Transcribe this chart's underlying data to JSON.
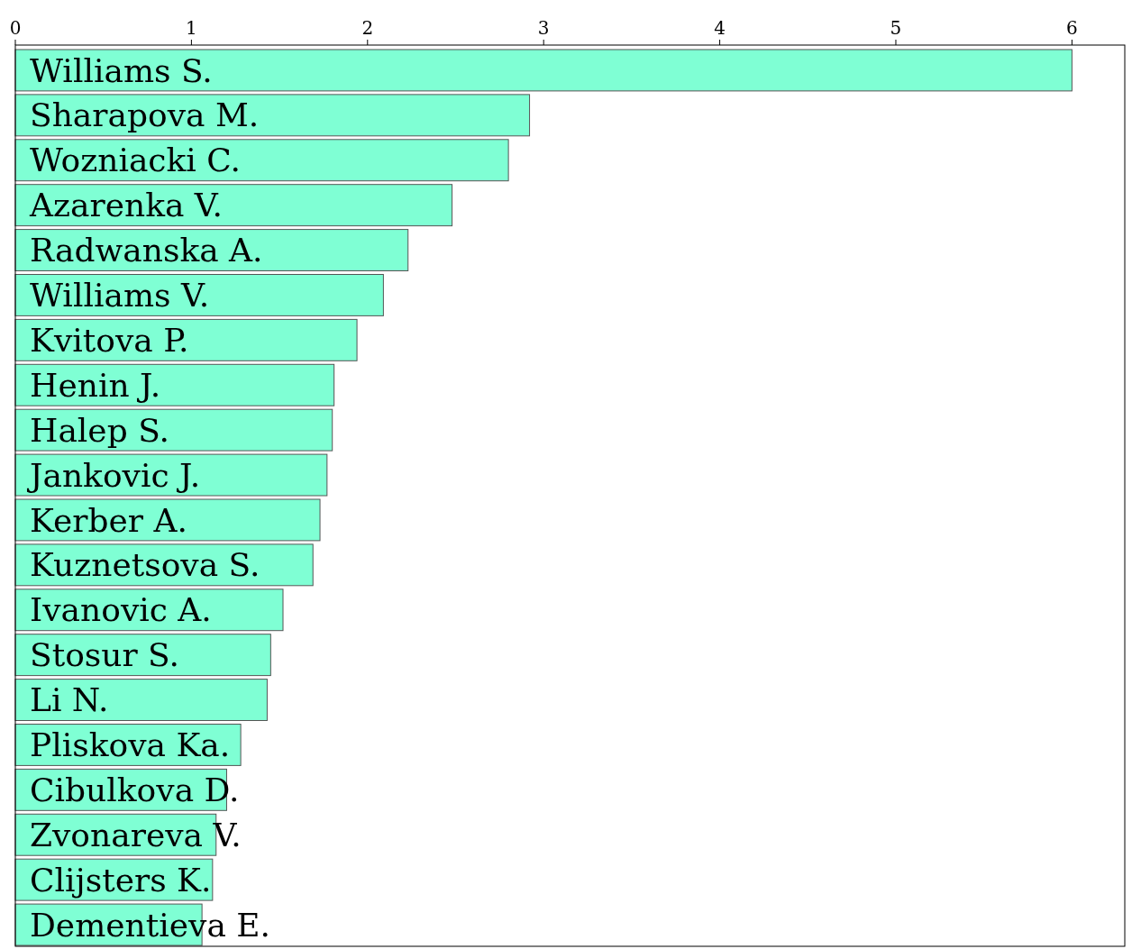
{
  "chart_data": {
    "type": "bar",
    "orientation": "horizontal",
    "categories": [
      "Williams S.",
      "Sharapova M.",
      "Wozniacki C.",
      "Azarenka V.",
      "Radwanska A.",
      "Williams V.",
      "Kvitova P.",
      "Henin J.",
      "Halep S.",
      "Jankovic J.",
      "Kerber A.",
      "Kuznetsova S.",
      "Ivanovic A.",
      "Stosur S.",
      "Li N.",
      "Pliskova Ka.",
      "Cibulkova D.",
      "Zvonareva V.",
      "Clijsters K.",
      "Dementieva E."
    ],
    "values": [
      6.0,
      2.92,
      2.8,
      2.48,
      2.23,
      2.09,
      1.94,
      1.81,
      1.8,
      1.77,
      1.73,
      1.69,
      1.52,
      1.45,
      1.43,
      1.28,
      1.2,
      1.14,
      1.12,
      1.06
    ],
    "color": "#7fffd4",
    "xlim": [
      0,
      6.3
    ],
    "xticks": [
      0,
      1,
      2,
      3,
      4,
      5,
      6
    ],
    "grid": false
  }
}
